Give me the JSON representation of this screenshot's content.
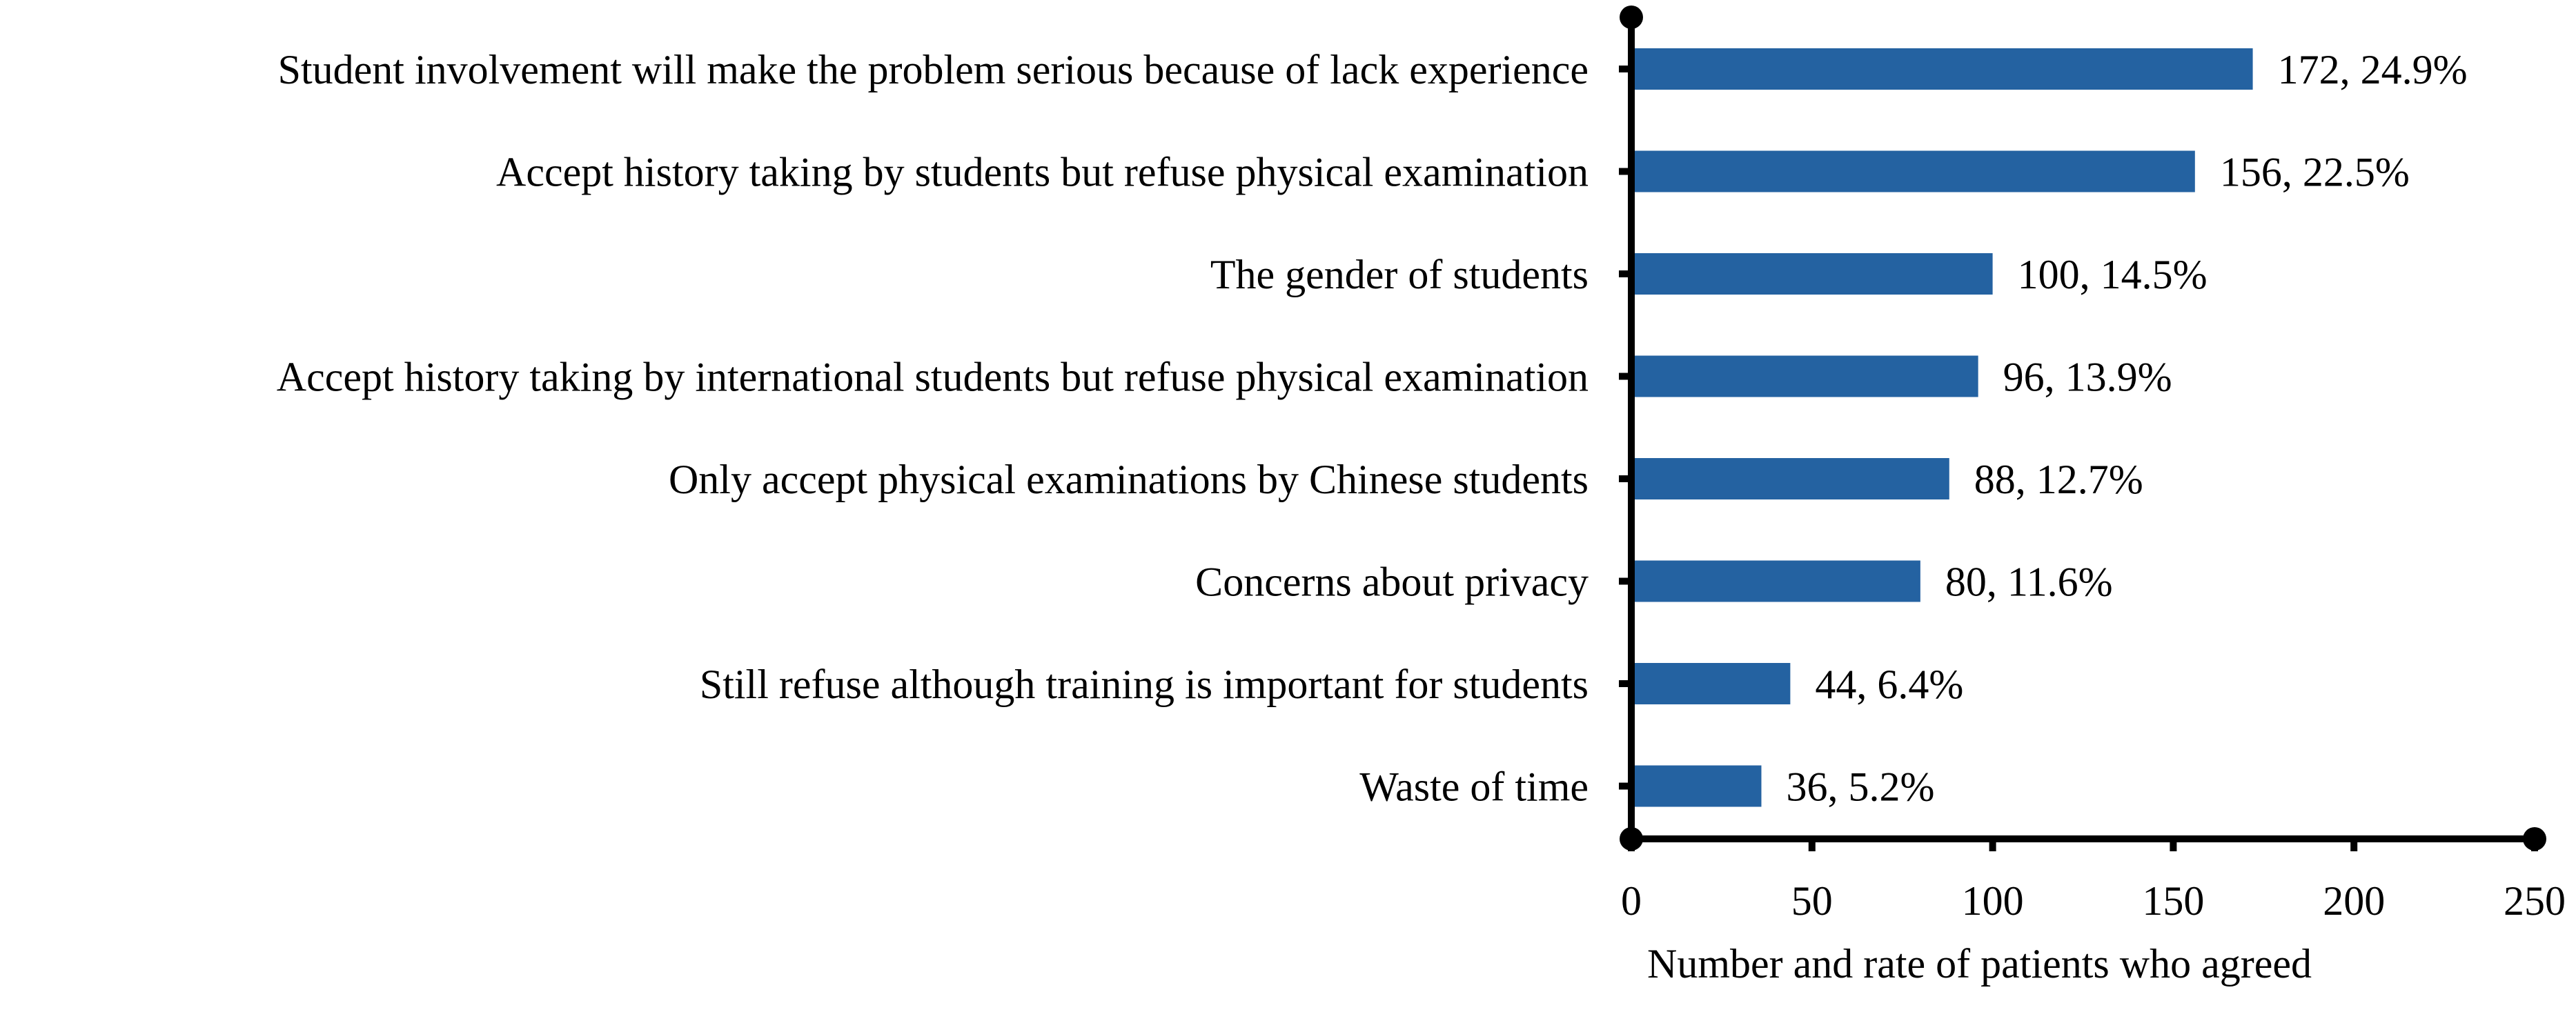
{
  "chart_data": {
    "type": "bar",
    "orientation": "horizontal",
    "categories": [
      "Student involvement will make the problem serious because of lack experience",
      "Accept history taking by students but refuse physical examination",
      "The gender of students",
      "Accept history taking by international students but refuse physical examination",
      "Only accept physical examinations by Chinese students",
      "Concerns about privacy",
      "Still refuse although training is important for students",
      "Waste of time"
    ],
    "values": [
      172,
      156,
      100,
      96,
      88,
      80,
      44,
      36
    ],
    "data_labels": [
      "172, 24.9%",
      "156, 22.5%",
      "100, 14.5%",
      "96, 13.9%",
      "88, 12.7%",
      "80, 11.6%",
      "44, 6.4%",
      "36, 5.2%"
    ],
    "title": "",
    "xlabel": "Number and rate of patients who agreed",
    "ylabel": "",
    "xlim": [
      0,
      250
    ],
    "xticks": [
      "0",
      "50",
      "100",
      "150",
      "200",
      "250"
    ],
    "grid": false,
    "legend": "none",
    "bar_color": "#2462A1",
    "axis_color": "#000000"
  }
}
